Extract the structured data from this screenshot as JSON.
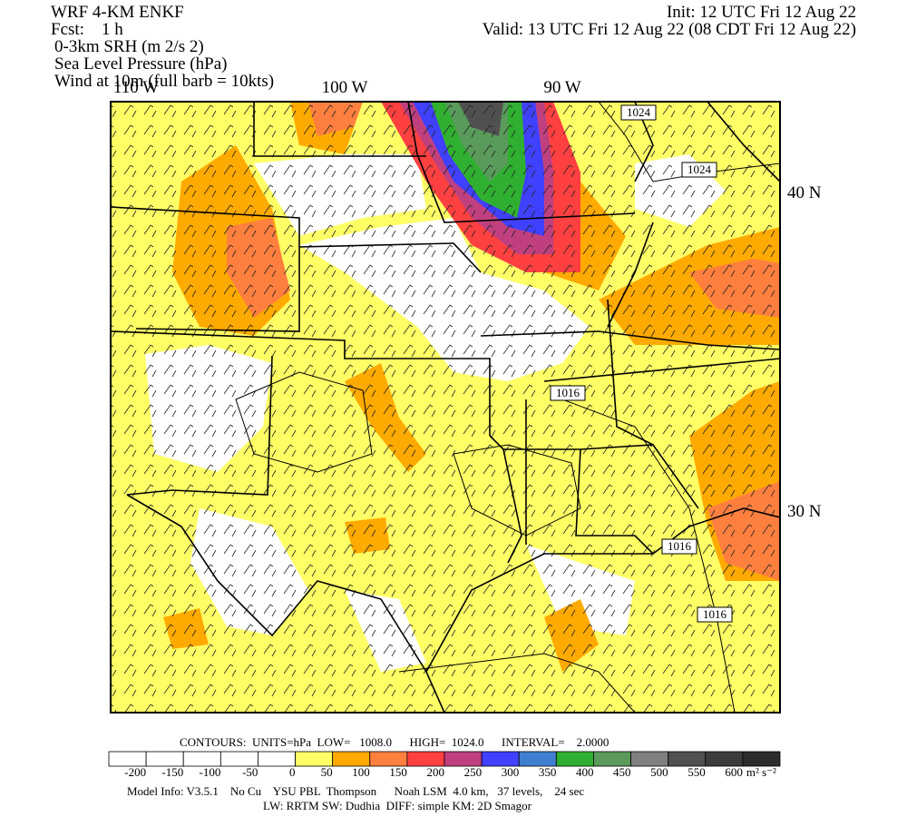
{
  "header": {
    "left": [
      "WRF 4-KM ENKF",
      "Fcst:    1 h",
      "0-3km SRH (m 2/s 2)",
      "Sea Level Pressure (hPa)",
      "Wind at 10m (full barb = 10kts)"
    ],
    "right": [
      "Init: 12 UTC Fri 12 Aug 22",
      "Valid: 13 UTC Fri 12 Aug 22 (08 CDT Fri 12 Aug 22)"
    ]
  },
  "map": {
    "longitudes": [
      "110 W",
      "100 W",
      "90 W"
    ],
    "latitudes": [
      "40 N",
      "30 N"
    ],
    "isobar_labels": [
      "1024",
      "1024",
      "1016",
      "1016",
      "1016"
    ]
  },
  "contours": "CONTOURS:  UNITS=hPa  LOW=   1008.0      HIGH=  1024.0      INTERVAL=    2.0000",
  "colorbar": {
    "colors": [
      "#ffffff",
      "#ffffff",
      "#ffffff",
      "#ffffff",
      "#ffffff",
      "#ffff66",
      "#ffaa00",
      "#ff7f3f",
      "#ff4040",
      "#c0407f",
      "#4040ff",
      "#3f7fd0",
      "#30b030",
      "#5a9a5a",
      "#808080",
      "#505050",
      "#3c3c3c",
      "#2c2c2c"
    ],
    "labels": [
      -200,
      -150,
      -100,
      -50,
      0,
      50,
      100,
      150,
      200,
      250,
      300,
      350,
      400,
      450,
      500,
      550,
      600
    ],
    "units": "m² s⁻²"
  },
  "footer": [
    "Model Info: V3.5.1    No Cu    YSU PBL  Thompson      Noah LSM  4.0 km,   37 levels,    24 sec",
    "LW: RRTM SW: Dudhia  DIFF: simple KM: 2D Smagor"
  ]
}
